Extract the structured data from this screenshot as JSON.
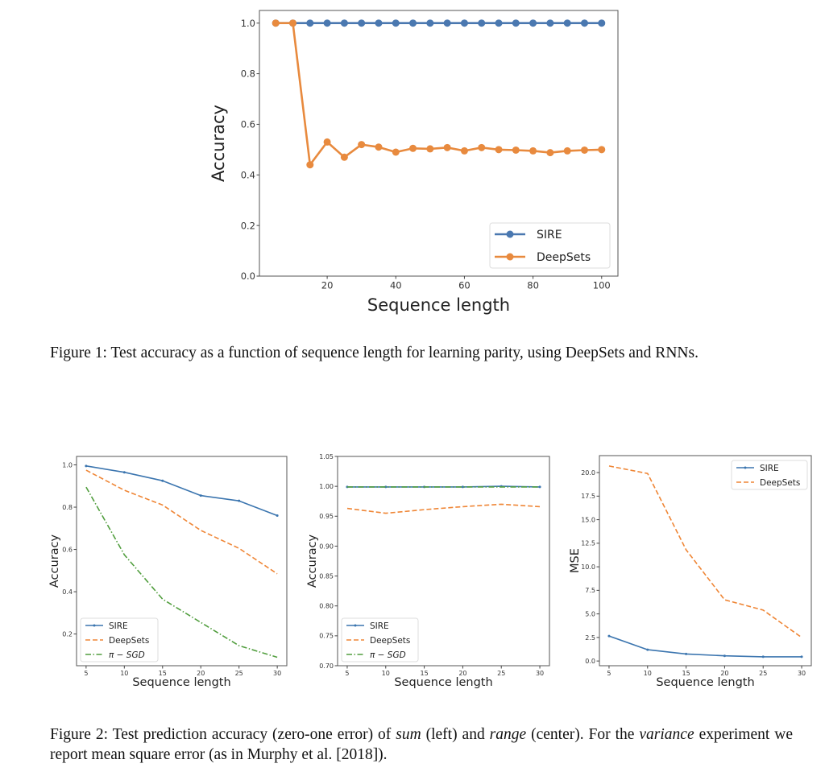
{
  "figure1": {
    "caption": "Figure 1: Test accuracy as a function of sequence length for learning parity, using DeepSets and RNNs."
  },
  "figure2": {
    "caption_parts": [
      "Figure 2: Test prediction accuracy (zero-one error) of ",
      "sum",
      " (left) and ",
      "range",
      " (center). For the ",
      "variance",
      " experiment we report mean square error (as in Murphy et al. [2018])."
    ]
  },
  "colors": {
    "SIRE": "#3b75af",
    "DeepSets": "#ef8636",
    "pi_SGD": "#519e3e",
    "fig1_SIRE": "#4a78b0",
    "fig1_DeepSets": "#e88a3e"
  },
  "chart_data": [
    {
      "type": "line",
      "title": "",
      "xlabel": "Sequence length",
      "ylabel": "Accuracy",
      "xlim": [
        0.25,
        104.75
      ],
      "ylim": [
        0,
        1.05
      ],
      "xticks": [
        20,
        40,
        60,
        80,
        100
      ],
      "yticks": [
        0.0,
        0.2,
        0.4,
        0.6,
        0.8,
        1.0
      ],
      "ytick_labels": [
        "0.0",
        "0.2",
        "0.4",
        "0.6",
        "0.8",
        "1.0"
      ],
      "grid": false,
      "legend": "lower-right",
      "x": [
        5,
        10,
        15,
        20,
        25,
        30,
        35,
        40,
        45,
        50,
        55,
        60,
        65,
        70,
        75,
        80,
        85,
        90,
        95,
        100
      ],
      "series": [
        {
          "name": "SIRE",
          "style": "solid-circle",
          "color": "#4a78b0",
          "values": [
            1,
            1,
            1,
            1,
            1,
            1,
            1,
            1,
            1,
            1,
            1,
            1,
            1,
            1,
            1,
            1,
            1,
            1,
            1,
            1
          ]
        },
        {
          "name": "DeepSets",
          "style": "solid-circle",
          "color": "#e88a3e",
          "values": [
            1.0,
            1.0,
            0.44,
            0.53,
            0.47,
            0.52,
            0.51,
            0.49,
            0.505,
            0.503,
            0.508,
            0.495,
            0.508,
            0.5,
            0.498,
            0.495,
            0.488,
            0.495,
            0.498,
            0.5
          ]
        }
      ]
    },
    {
      "type": "line",
      "title": "",
      "xlabel": "Sequence length",
      "ylabel": "Accuracy",
      "xlim": [
        3.75,
        31.25
      ],
      "ylim": [
        0.05,
        1.04
      ],
      "xticks": [
        5,
        10,
        15,
        20,
        25,
        30
      ],
      "yticks": [
        0.2,
        0.4,
        0.6,
        0.8,
        1.0
      ],
      "ytick_labels": [
        "0.2",
        "0.4",
        "0.6",
        "0.8",
        "1.0"
      ],
      "grid": false,
      "legend": "lower-left",
      "x": [
        5,
        10,
        15,
        20,
        25,
        30
      ],
      "series": [
        {
          "name": "SIRE",
          "style": "solid",
          "color": "#3b75af",
          "values": [
            0.995,
            0.965,
            0.925,
            0.855,
            0.83,
            0.76
          ]
        },
        {
          "name": "DeepSets",
          "style": "dashed",
          "color": "#ef8636",
          "values": [
            0.975,
            0.88,
            0.81,
            0.69,
            0.605,
            0.485
          ]
        },
        {
          "name": "π − SGD",
          "style": "dashdot",
          "color": "#519e3e",
          "values": [
            0.895,
            0.575,
            0.365,
            0.255,
            0.145,
            0.09
          ]
        }
      ]
    },
    {
      "type": "line",
      "title": "",
      "xlabel": "Sequence length",
      "ylabel": "Accuracy",
      "xlim": [
        3.75,
        31.25
      ],
      "ylim": [
        0.7,
        1.05
      ],
      "xticks": [
        5,
        10,
        15,
        20,
        25,
        30
      ],
      "yticks": [
        0.7,
        0.75,
        0.8,
        0.85,
        0.9,
        0.95,
        1.0,
        1.05
      ],
      "ytick_labels": [
        "0.70",
        "0.75",
        "0.80",
        "0.85",
        "0.90",
        "0.95",
        "1.00",
        "1.05"
      ],
      "grid": false,
      "legend": "lower-left",
      "x": [
        5,
        10,
        15,
        20,
        25,
        30
      ],
      "series": [
        {
          "name": "SIRE",
          "style": "solid",
          "color": "#3b75af",
          "values": [
            0.999,
            0.999,
            0.999,
            0.999,
            1.0,
            0.999
          ]
        },
        {
          "name": "DeepSets",
          "style": "dashed",
          "color": "#ef8636",
          "values": [
            0.963,
            0.955,
            0.961,
            0.966,
            0.97,
            0.966
          ]
        },
        {
          "name": "π − SGD",
          "style": "dashdot",
          "color": "#519e3e",
          "values": [
            0.999,
            0.999,
            0.999,
            0.999,
            0.999,
            0.999
          ]
        }
      ]
    },
    {
      "type": "line",
      "title": "",
      "xlabel": "Sequence length",
      "ylabel": "MSE",
      "xlim": [
        3.75,
        31.25
      ],
      "ylim": [
        -0.5,
        21.8
      ],
      "xticks": [
        5,
        10,
        15,
        20,
        25,
        30
      ],
      "yticks": [
        0,
        2.5,
        5,
        7.5,
        10,
        12.5,
        15,
        17.5,
        20
      ],
      "ytick_labels": [
        "0.0",
        "2.5",
        "5.0",
        "7.5",
        "10.0",
        "12.5",
        "15.0",
        "17.5",
        "20.0"
      ],
      "grid": false,
      "legend": "upper-right",
      "x": [
        5,
        10,
        15,
        20,
        25,
        30
      ],
      "series": [
        {
          "name": "SIRE",
          "style": "solid",
          "color": "#3b75af",
          "values": [
            2.65,
            1.2,
            0.75,
            0.55,
            0.45,
            0.45
          ]
        },
        {
          "name": "DeepSets",
          "style": "dashed",
          "color": "#ef8636",
          "values": [
            20.7,
            19.9,
            11.8,
            6.5,
            5.4,
            2.5
          ]
        }
      ]
    }
  ]
}
